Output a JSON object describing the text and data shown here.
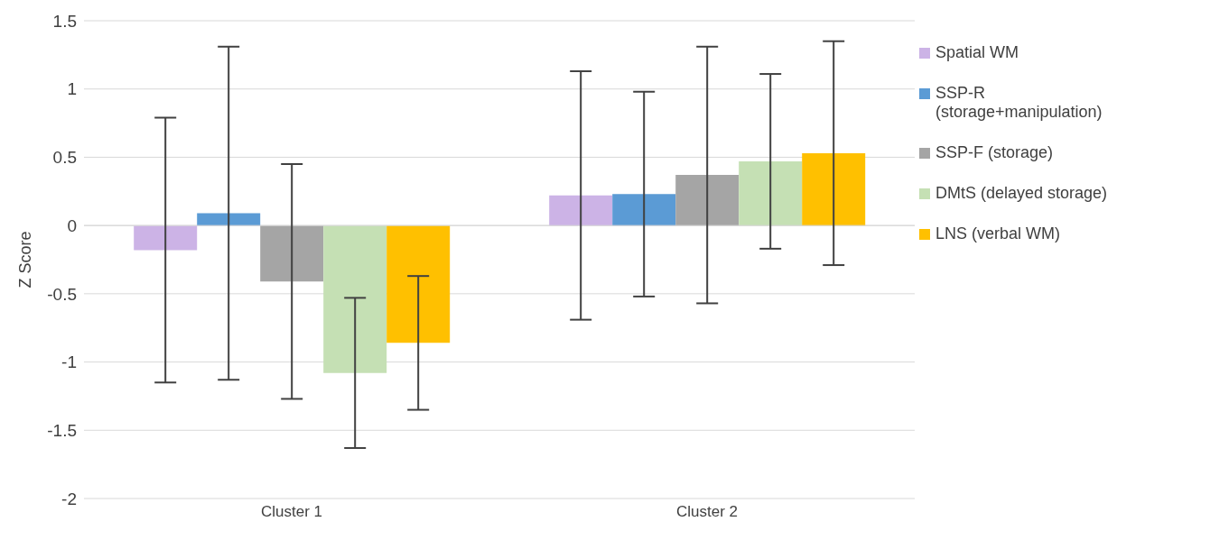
{
  "chart_data": {
    "type": "bar",
    "ylabel": "Z Score",
    "categories": [
      "Cluster 1",
      "Cluster 2"
    ],
    "series": [
      {
        "name": "Spatial WM",
        "color": "#ccb3e6",
        "values": [
          -0.18,
          0.22
        ],
        "errors": [
          0.97,
          0.91
        ]
      },
      {
        "name": "SSP-R (storage+manipulation)",
        "color": "#5b9bd5",
        "values": [
          0.09,
          0.23
        ],
        "errors": [
          1.22,
          0.75
        ]
      },
      {
        "name": "SSP-F (storage)",
        "color": "#a5a5a5",
        "values": [
          -0.41,
          0.37
        ],
        "errors": [
          0.86,
          0.94
        ]
      },
      {
        "name": "DMtS (delayed storage)",
        "color": "#c5e0b4",
        "values": [
          -1.08,
          0.47
        ],
        "errors": [
          0.55,
          0.64
        ]
      },
      {
        "name": "LNS (verbal WM)",
        "color": "#ffc000",
        "values": [
          -0.86,
          0.53
        ],
        "errors": [
          0.49,
          0.82
        ]
      }
    ],
    "ylim": [
      -2,
      1.5
    ],
    "yticks": [
      -2,
      -1.5,
      -1,
      -0.5,
      0,
      0.5,
      1,
      1.5
    ],
    "grid": "y",
    "legend": "right"
  }
}
